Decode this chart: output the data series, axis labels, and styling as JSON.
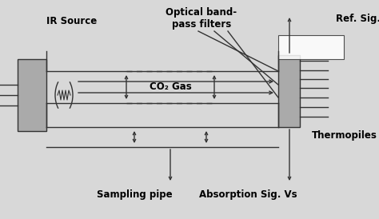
{
  "bg_color": "#d8d8d8",
  "border_color": "#333333",
  "gray_fill": "#aaaaaa",
  "white": "#ffffff",
  "labels": {
    "ir_source": "IR Source",
    "co2_gas": "CO₂ Gas",
    "optical": "Optical band-\npass filters",
    "ref_sig": "Ref. Sig. Vr",
    "thermopiles": "Thermopiles",
    "sampling": "Sampling pipe",
    "absorption": "Absorption Sig. Vs"
  },
  "figsize": [
    4.74,
    2.74
  ],
  "dpi": 100
}
